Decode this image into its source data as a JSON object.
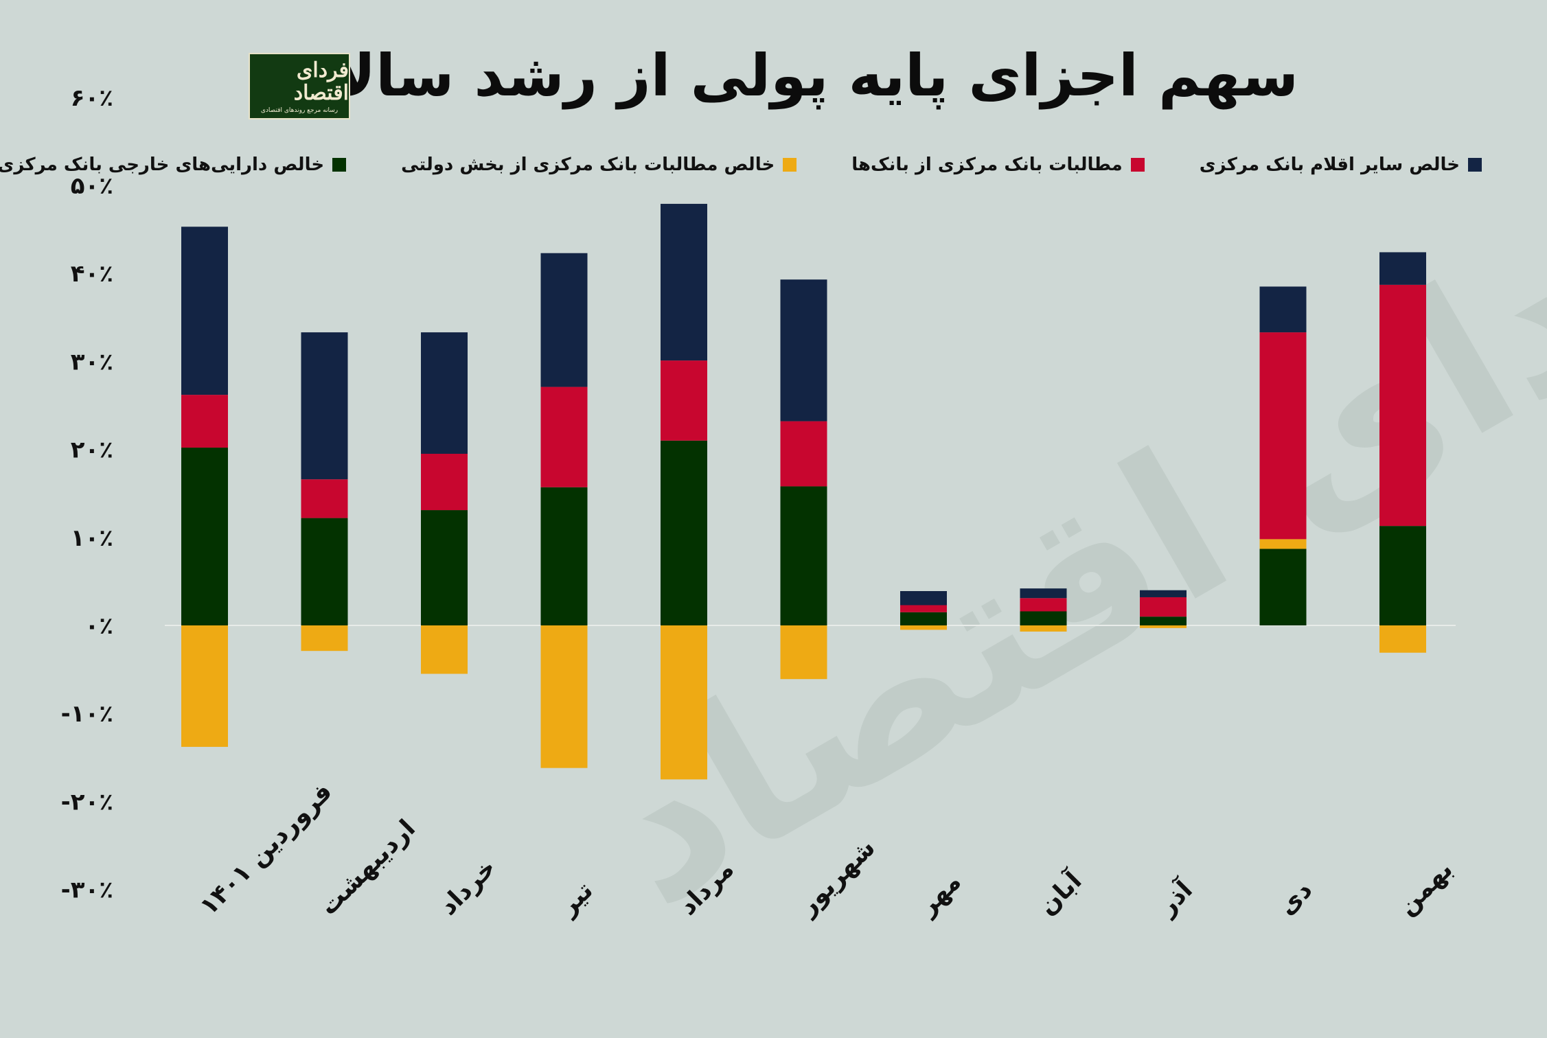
{
  "title": "سهم اجزای پایه پولی از رشد سالانه",
  "logo": {
    "main": "فردای اقتصاد",
    "sub": "رسانه مرجع روندهای اقتصادی"
  },
  "watermark": "فردای اقتصاد",
  "legend": [
    {
      "label": "خالص سایر اقلام بانک مرکزی",
      "color": "#132444"
    },
    {
      "label": "مطالبات بانک مرکزی از بانک‌ها",
      "color": "#c8062f"
    },
    {
      "label": "خالص مطالبات بانک مرکزی از بخش دولتی",
      "color": "#eeaa14"
    },
    {
      "label": "خالص دارایی‌های خارجی بانک مرکزی",
      "color": "#033200"
    }
  ],
  "chart_data": {
    "type": "bar",
    "stacked": true,
    "title": "سهم اجزای پایه پولی از رشد سالانه",
    "xlabel": "",
    "ylabel": "",
    "ylim": [
      -30,
      60
    ],
    "yticks": [
      "۶۰٪",
      "۵۰٪",
      "۴۰٪",
      "۳۰٪",
      "۲۰٪",
      "۱۰٪",
      "۰٪",
      "-۱۰٪",
      "-۲۰٪",
      "-۳۰٪"
    ],
    "ytick_values": [
      60,
      50,
      40,
      30,
      20,
      10,
      0,
      -10,
      -20,
      -30
    ],
    "categories": [
      "فروردین ۱۴۰۱",
      "اردیبهشت",
      "خرداد",
      "تیر",
      "مرداد",
      "شهریور",
      "مهر",
      "آبان",
      "آذر",
      "دی",
      "بهمن"
    ],
    "series": [
      {
        "name": "خالص دارایی‌های خارجی بانک مرکزی",
        "color": "#033200",
        "values": [
          20.2,
          12.2,
          13.1,
          15.7,
          21.0,
          15.8,
          1.5,
          1.6,
          1.0,
          8.7,
          11.3
        ]
      },
      {
        "name": "خالص مطالبات بانک مرکزی از بخش دولتی",
        "color": "#eeaa14",
        "values": [
          -13.8,
          -2.9,
          -5.5,
          -16.2,
          -17.5,
          -6.1,
          -0.5,
          -0.7,
          -0.3,
          1.1,
          -3.1
        ]
      },
      {
        "name": "مطالبات بانک مرکزی از بانک‌ها",
        "color": "#c8062f",
        "values": [
          6.0,
          4.4,
          6.4,
          11.4,
          9.1,
          7.4,
          0.8,
          1.5,
          2.2,
          23.5,
          27.4
        ]
      },
      {
        "name": "خالص سایر اقلام بانک مرکزی",
        "color": "#132444",
        "values": [
          19.1,
          16.7,
          13.8,
          15.2,
          17.8,
          16.1,
          1.6,
          1.1,
          0.8,
          5.2,
          3.7
        ]
      }
    ],
    "grid": false,
    "legend_position": "top"
  }
}
